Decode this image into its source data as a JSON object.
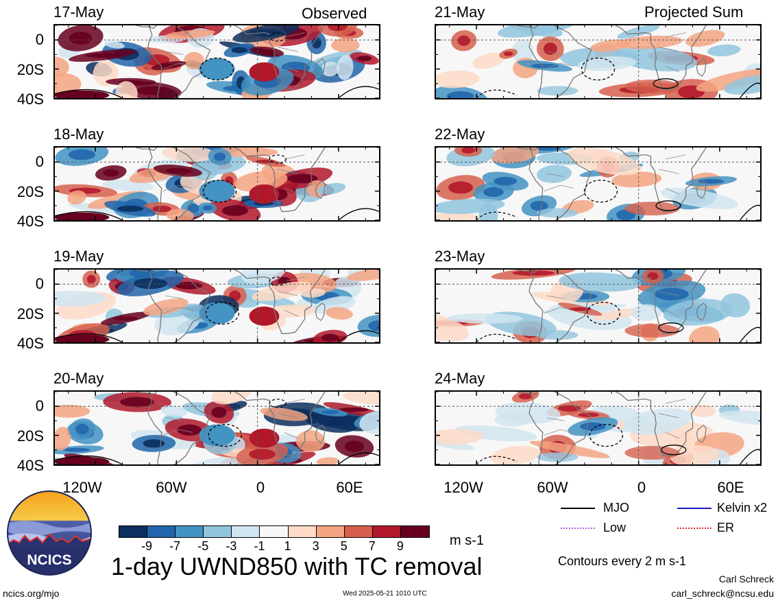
{
  "headers": {
    "observed": "Observed",
    "projected": "Projected Sum"
  },
  "panels_left": [
    {
      "date": "17-May"
    },
    {
      "date": "18-May"
    },
    {
      "date": "19-May"
    },
    {
      "date": "20-May"
    }
  ],
  "panels_right": [
    {
      "date": "21-May"
    },
    {
      "date": "22-May"
    },
    {
      "date": "23-May"
    },
    {
      "date": "24-May"
    }
  ],
  "y_ticks": [
    "0",
    "20S",
    "40S"
  ],
  "x_ticks": [
    "120W",
    "60W",
    "0",
    "60E"
  ],
  "legend": {
    "mjo": "MJO",
    "kelvin": "Kelvin x2",
    "low": "Low",
    "er": "ER",
    "colors": {
      "mjo": "#000000",
      "kelvin": "#1a1ac8",
      "low": "#b455e6",
      "er": "#d21e1e"
    }
  },
  "colorbar": {
    "labels": [
      "-9",
      "-7",
      "-5",
      "-3",
      "-1",
      "1",
      "3",
      "5",
      "7",
      "9"
    ],
    "unit": "m s-1",
    "colors": [
      "#0b2f5e",
      "#2166ac",
      "#4393c3",
      "#92c5de",
      "#d1e5f0",
      "#f7f7f7",
      "#fddbc7",
      "#f4a582",
      "#d6604d",
      "#b2182b",
      "#67001f"
    ]
  },
  "main_title": "1-day UWND850 with TC removal",
  "contours_note": "Contours every 2 m s-1",
  "logo_text": "NCICS",
  "footer": {
    "url": "ncics.org/mjo",
    "timestamp": "Wed 2025-05-21 1010 UTC",
    "author": "Carl Schreck",
    "email": "carl_schreck@ncsu.edu"
  }
}
